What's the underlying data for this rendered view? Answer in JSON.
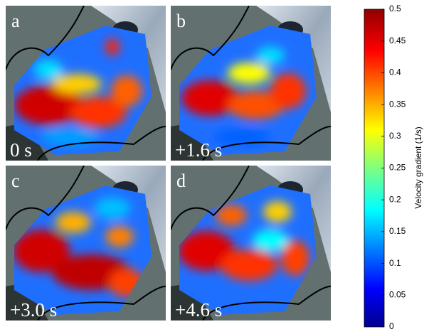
{
  "panels": [
    {
      "letter": "a",
      "time": "0 s"
    },
    {
      "letter": "b",
      "time": "+1.6 s"
    },
    {
      "letter": "c",
      "time": "+3.0 s"
    },
    {
      "letter": "d",
      "time": "+4.6 s"
    }
  ],
  "colorbar": {
    "label": "Velocity gradient (1/s)",
    "lim": [
      0,
      0.5
    ],
    "ticks": [
      0,
      0.05,
      0.1,
      0.15,
      0.2,
      0.25,
      0.3,
      0.35,
      0.4,
      0.45,
      0.5
    ]
  }
}
